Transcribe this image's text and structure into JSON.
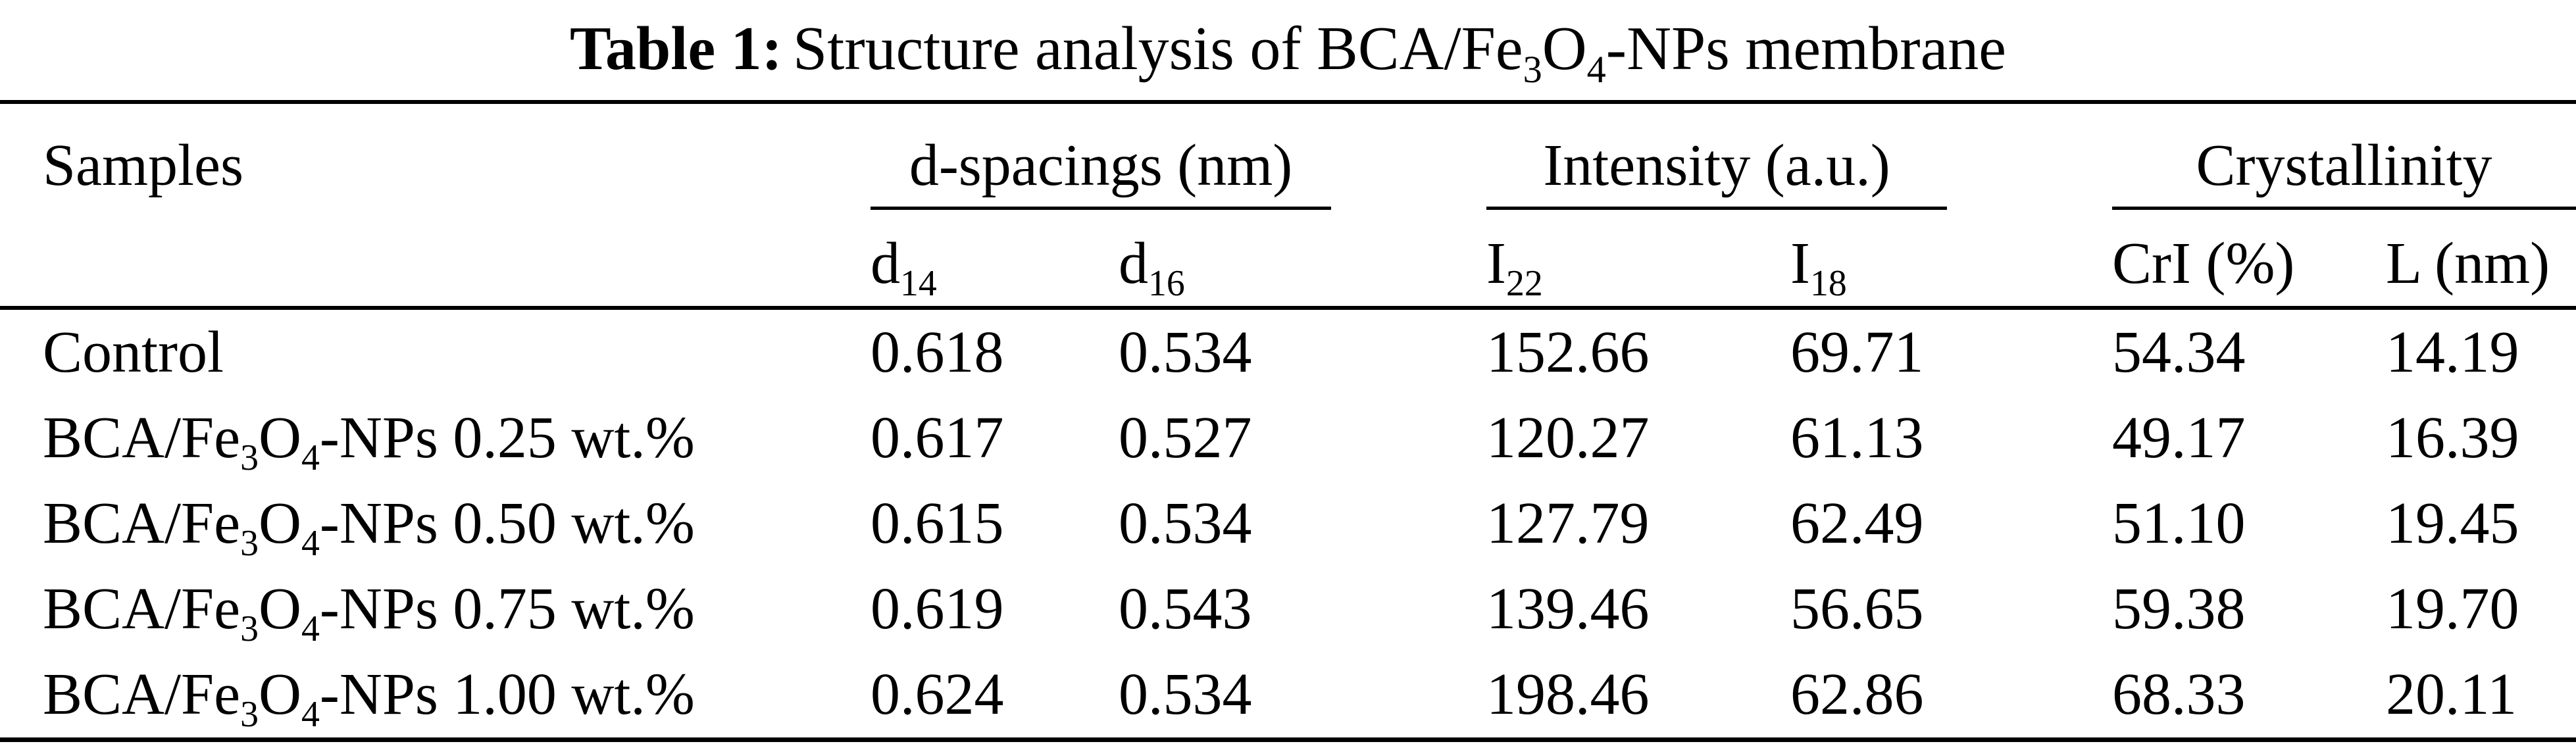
{
  "title": {
    "segments": [
      {
        "b": "Table 1:"
      },
      {
        "t": "Structure analysis of BCA/Fe"
      },
      {
        "sub": "3"
      },
      {
        "t": "O"
      },
      {
        "sub": "4"
      },
      {
        "t": "-NPs membrane"
      }
    ]
  },
  "table": {
    "samples_header": "Samples",
    "groups": [
      {
        "label": "d-spacings (nm)",
        "cols": [
          [
            {
              "t": "d"
            },
            {
              "sub": "14"
            }
          ],
          [
            {
              "t": "d"
            },
            {
              "sub": "16"
            }
          ]
        ]
      },
      {
        "label": "Intensity (a.u.)",
        "cols": [
          [
            {
              "t": "I"
            },
            {
              "sub": "22"
            }
          ],
          [
            {
              "t": "I"
            },
            {
              "sub": "18"
            }
          ]
        ]
      },
      {
        "label": "Crystallinity",
        "cols": [
          "CrI (%)",
          "L (nm)"
        ]
      }
    ],
    "rows": [
      {
        "sample": [
          {
            "t": "Control"
          }
        ],
        "values": [
          "0.618",
          "0.534",
          "152.66",
          "69.71",
          "54.34",
          "14.19"
        ]
      },
      {
        "sample": [
          {
            "t": "BCA/Fe"
          },
          {
            "sub": "3"
          },
          {
            "t": "O"
          },
          {
            "sub": "4"
          },
          {
            "t": "-NPs 0.25 wt.%"
          }
        ],
        "values": [
          "0.617",
          "0.527",
          "120.27",
          "61.13",
          "49.17",
          "16.39"
        ]
      },
      {
        "sample": [
          {
            "t": "BCA/Fe"
          },
          {
            "sub": "3"
          },
          {
            "t": "O"
          },
          {
            "sub": "4"
          },
          {
            "t": "-NPs 0.50 wt.%"
          }
        ],
        "values": [
          "0.615",
          "0.534",
          "127.79",
          "62.49",
          "51.10",
          "19.45"
        ]
      },
      {
        "sample": [
          {
            "t": "BCA/Fe"
          },
          {
            "sub": "3"
          },
          {
            "t": "O"
          },
          {
            "sub": "4"
          },
          {
            "t": "-NPs 0.75 wt.%"
          }
        ],
        "values": [
          "0.619",
          "0.543",
          "139.46",
          "56.65",
          "59.38",
          "19.70"
        ]
      },
      {
        "sample": [
          {
            "t": "BCA/Fe"
          },
          {
            "sub": "3"
          },
          {
            "t": "O"
          },
          {
            "sub": "4"
          },
          {
            "t": "-NPs 1.00 wt.%"
          }
        ],
        "values": [
          "0.624",
          "0.534",
          "198.46",
          "62.86",
          "68.33",
          "20.11"
        ]
      }
    ]
  },
  "colors": {
    "background": "#ffffff",
    "text": "#000000",
    "rule": "#000000"
  }
}
